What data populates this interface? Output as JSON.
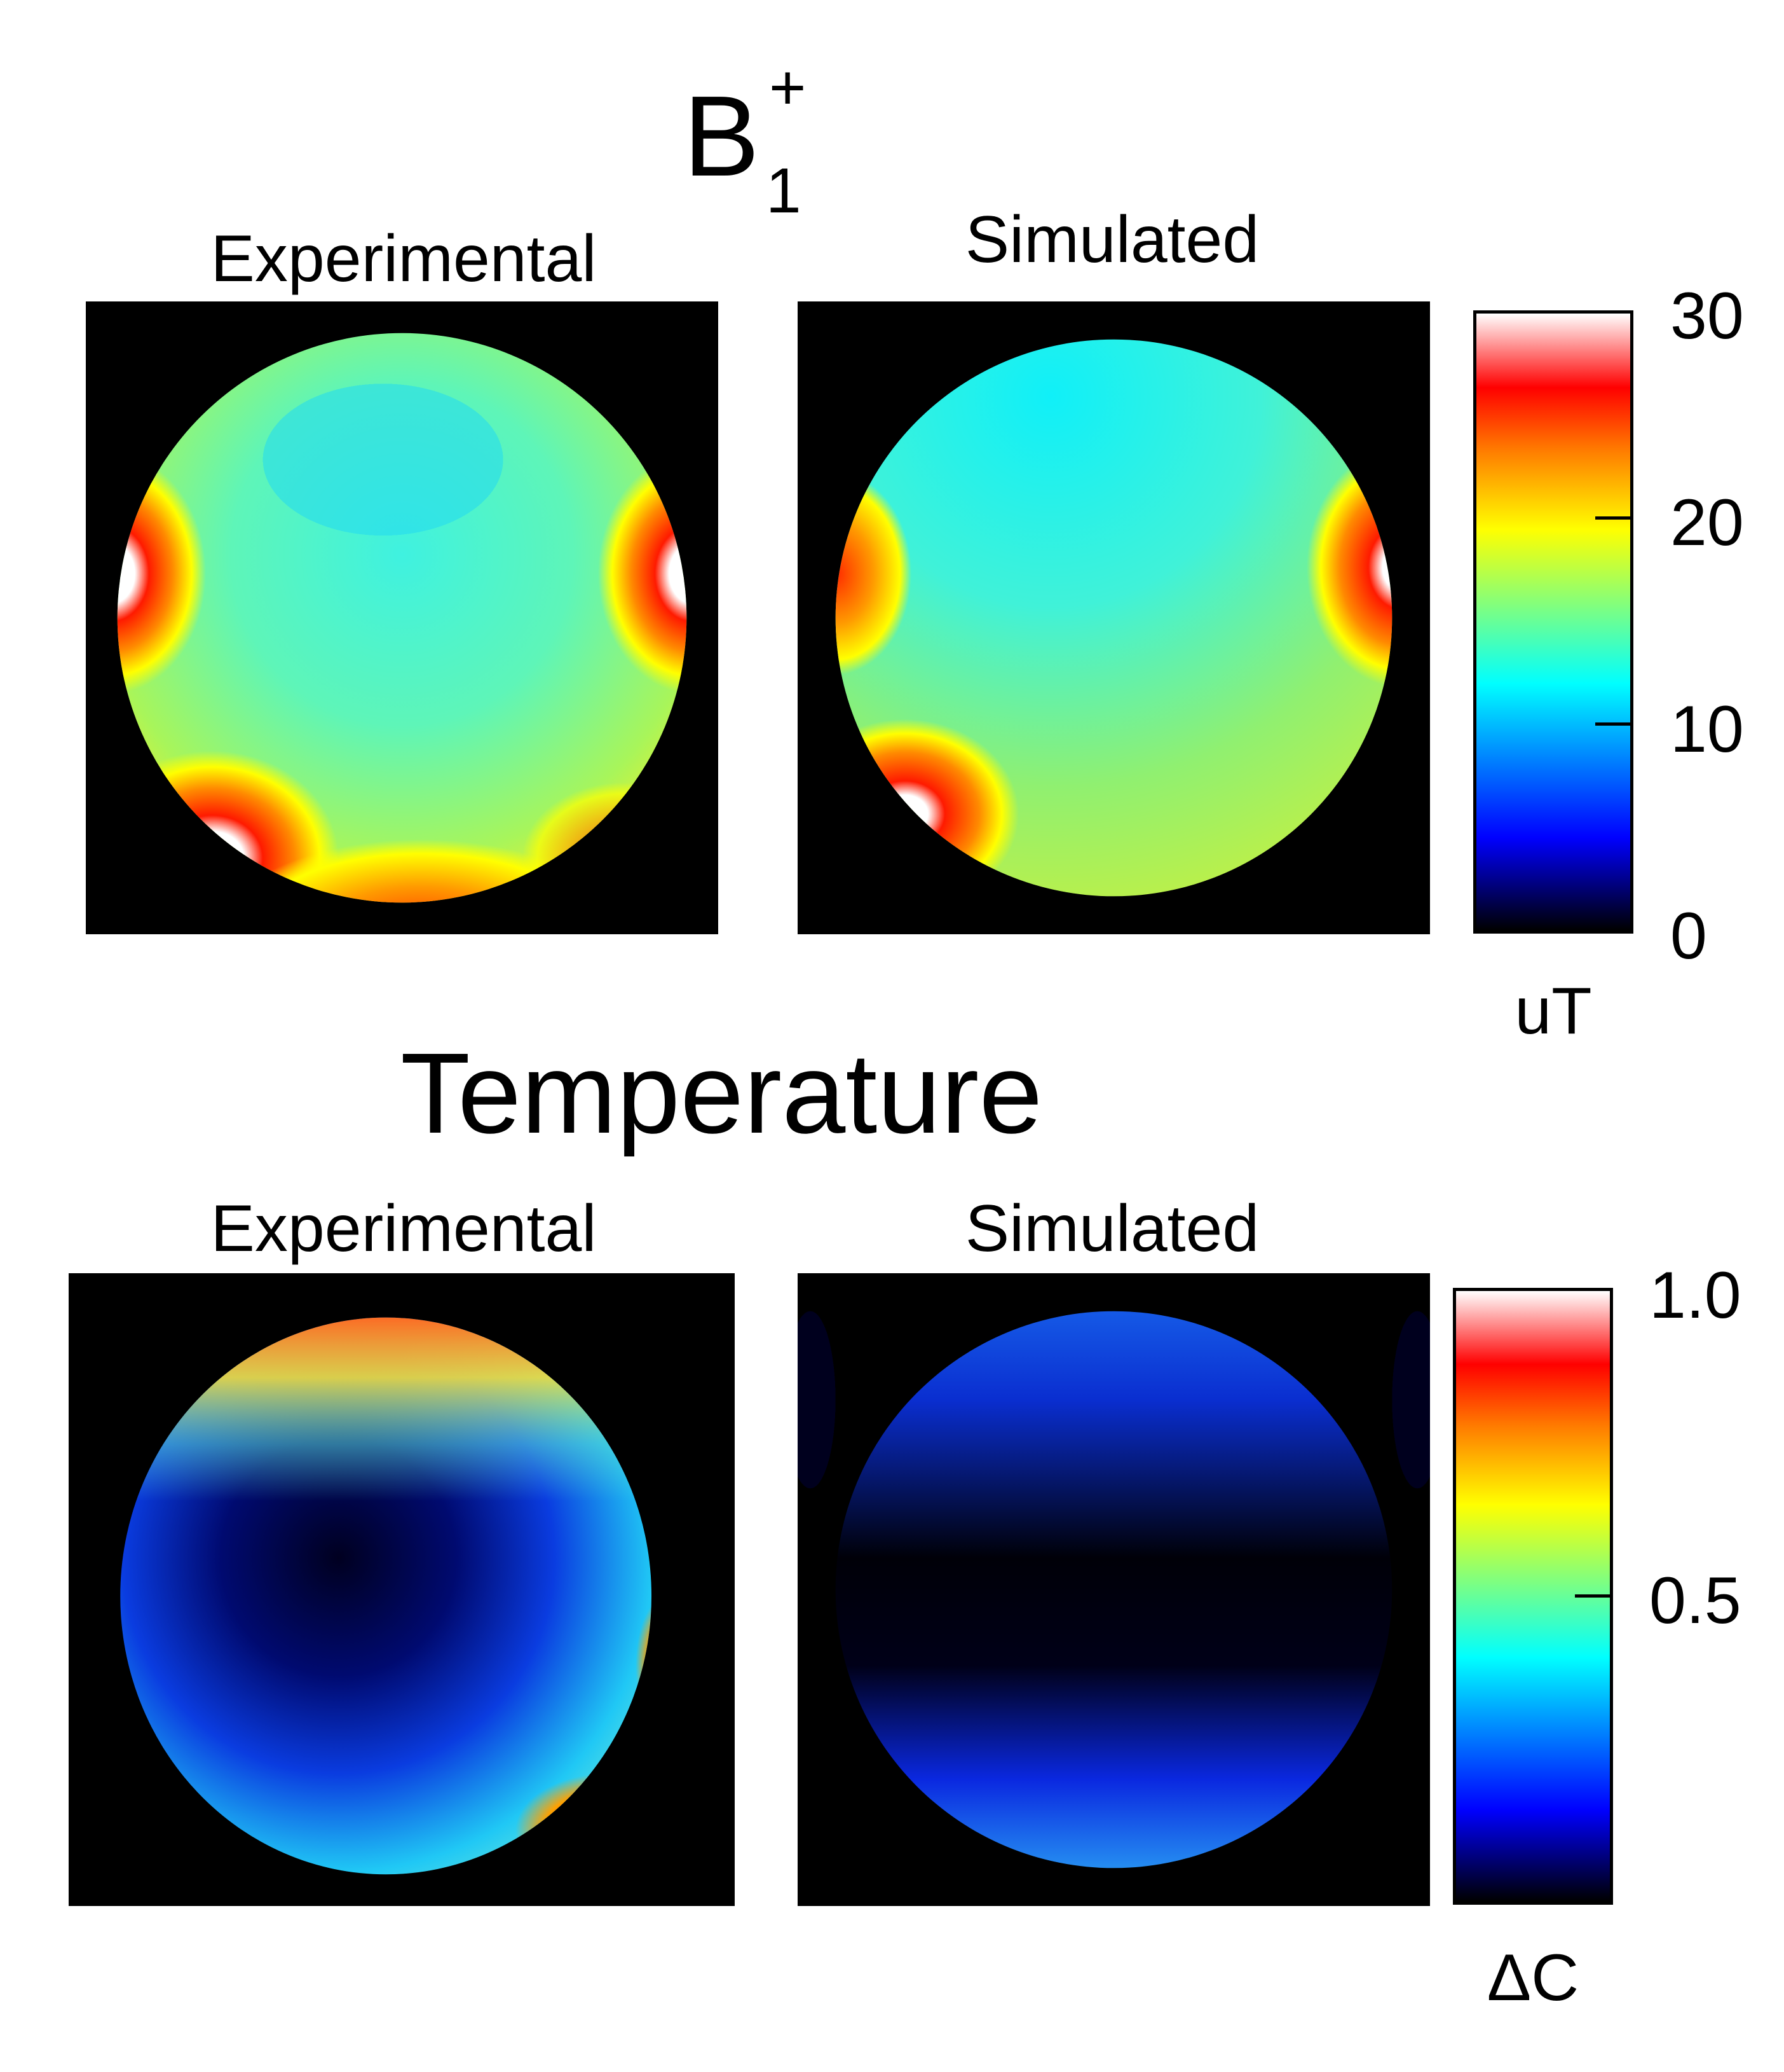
{
  "b1_section": {
    "title_base": "B",
    "title_sup": "+",
    "title_sub": "1",
    "panel_left_label": "Experimental",
    "panel_right_label": "Simulated",
    "colorbar": {
      "ticks": [
        "30",
        "20",
        "10",
        "0"
      ],
      "unit": "uT"
    }
  },
  "temperature_section": {
    "title": "Temperature",
    "panel_left_label": "Experimental",
    "panel_right_label": "Simulated",
    "colorbar": {
      "ticks": [
        "1.0",
        "0.5"
      ],
      "unit": "ΔC"
    }
  },
  "colors": {
    "background": "#000000",
    "jet_stops": [
      "#000000",
      "#0000ff",
      "#00ffff",
      "#ffff00",
      "#ff0000",
      "#ffffff"
    ]
  }
}
